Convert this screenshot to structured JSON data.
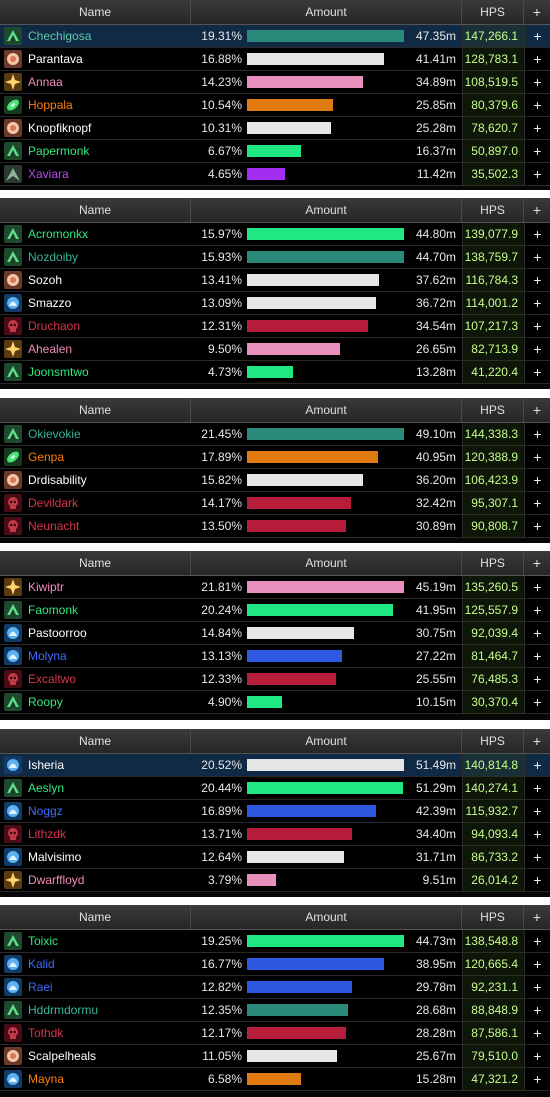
{
  "colors": {
    "monk": "#1fe882",
    "monk_teal": "#2a8a7a",
    "priest": "#e6e6e6",
    "paladin": "#e98fbd",
    "evoker": "#e07a10",
    "shaman": "#2f58e0",
    "druid_bar": "#a32df0",
    "dk": "#b51d3a",
    "hps_text": "#c6ff8c"
  },
  "panels": [
    {
      "header": {
        "name": "Name",
        "amount": "Amount",
        "hps": "HPS",
        "plus": "+"
      },
      "rows": [
        {
          "name": "Chechigosa",
          "name_color": "#5dc8a8",
          "icon": "monk-icon",
          "pct": "19.31%",
          "amount": "47.35m",
          "hps": "147,266.1",
          "plus": "+",
          "bar_fraction": 1.0,
          "bar_color": "#2a8a7a",
          "selected": true
        },
        {
          "name": "Parantava",
          "name_color": "#ffffff",
          "icon": "priest-icon",
          "pct": "16.88%",
          "amount": "41.41m",
          "hps": "128,783.1",
          "plus": "+",
          "bar_fraction": 0.874,
          "bar_color": "#e6e6e6"
        },
        {
          "name": "Annaa",
          "name_color": "#f38bb9",
          "icon": "paladin-icon",
          "pct": "14.23%",
          "amount": "34.89m",
          "hps": "108,519.5",
          "plus": "+",
          "bar_fraction": 0.737,
          "bar_color": "#e98fbd"
        },
        {
          "name": "Hoppala",
          "name_color": "#ff7d0a",
          "icon": "evoker-icon",
          "pct": "10.54%",
          "amount": "25.85m",
          "hps": "80,379.6",
          "plus": "+",
          "bar_fraction": 0.546,
          "bar_color": "#e07a10"
        },
        {
          "name": "Knopfiknopf",
          "name_color": "#ffffff",
          "icon": "priest-icon",
          "pct": "10.31%",
          "amount": "25.28m",
          "hps": "78,620.7",
          "plus": "+",
          "bar_fraction": 0.534,
          "bar_color": "#e6e6e6"
        },
        {
          "name": "Papermonk",
          "name_color": "#33e87e",
          "icon": "monk-icon",
          "pct": "6.67%",
          "amount": "16.37m",
          "hps": "50,897.0",
          "plus": "+",
          "bar_fraction": 0.346,
          "bar_color": "#1fe882"
        },
        {
          "name": "Xaviara",
          "name_color": "#b04fe8",
          "icon": "druid-icon",
          "pct": "4.65%",
          "amount": "11.42m",
          "hps": "35,502.3",
          "plus": "+",
          "bar_fraction": 0.241,
          "bar_color": "#a32df0"
        }
      ]
    },
    {
      "header": {
        "name": "Name",
        "amount": "Amount",
        "hps": "HPS",
        "plus": "+"
      },
      "rows": [
        {
          "name": "Acromonkx",
          "name_color": "#33e87e",
          "icon": "monk-icon",
          "pct": "15.97%",
          "amount": "44.80m",
          "hps": "139,077.9",
          "plus": "+",
          "bar_fraction": 1.0,
          "bar_color": "#1fe882"
        },
        {
          "name": "Nozdoiby",
          "name_color": "#3ab59a",
          "icon": "monk-icon",
          "pct": "15.93%",
          "amount": "44.70m",
          "hps": "138,759.7",
          "plus": "+",
          "bar_fraction": 0.998,
          "bar_color": "#2a8a7a"
        },
        {
          "name": "Sozoh",
          "name_color": "#ffffff",
          "icon": "priest-icon",
          "pct": "13.41%",
          "amount": "37.62m",
          "hps": "116,784.3",
          "plus": "+",
          "bar_fraction": 0.84,
          "bar_color": "#e6e6e6"
        },
        {
          "name": "Smazzo",
          "name_color": "#ffffff",
          "icon": "shaman-icon",
          "pct": "13.09%",
          "amount": "36.72m",
          "hps": "114,001.2",
          "plus": "+",
          "bar_fraction": 0.82,
          "bar_color": "#e6e6e6"
        },
        {
          "name": "Druchaon",
          "name_color": "#d7354e",
          "icon": "dk-icon",
          "pct": "12.31%",
          "amount": "34.54m",
          "hps": "107,217.3",
          "plus": "+",
          "bar_fraction": 0.771,
          "bar_color": "#b51d3a"
        },
        {
          "name": "Ahealen",
          "name_color": "#f38bb9",
          "icon": "paladin-icon",
          "pct": "9.50%",
          "amount": "26.65m",
          "hps": "82,713.9",
          "plus": "+",
          "bar_fraction": 0.595,
          "bar_color": "#e98fbd"
        },
        {
          "name": "Joonsmtwo",
          "name_color": "#33e87e",
          "icon": "monk-icon",
          "pct": "4.73%",
          "amount": "13.28m",
          "hps": "41,220.4",
          "plus": "+",
          "bar_fraction": 0.296,
          "bar_color": "#1fe882"
        }
      ]
    },
    {
      "header": {
        "name": "Name",
        "amount": "Amount",
        "hps": "HPS",
        "plus": "+"
      },
      "rows": [
        {
          "name": "Okievokie",
          "name_color": "#3ab59a",
          "icon": "monk-icon",
          "pct": "21.45%",
          "amount": "49.10m",
          "hps": "144,338.3",
          "plus": "+",
          "bar_fraction": 1.0,
          "bar_color": "#2a8a7a"
        },
        {
          "name": "Genpa",
          "name_color": "#ff7d0a",
          "icon": "evoker-icon",
          "pct": "17.89%",
          "amount": "40.95m",
          "hps": "120,388.9",
          "plus": "+",
          "bar_fraction": 0.834,
          "bar_color": "#e07a10"
        },
        {
          "name": "Drdisability",
          "name_color": "#ffffff",
          "icon": "priest-icon",
          "pct": "15.82%",
          "amount": "36.20m",
          "hps": "106,423.9",
          "plus": "+",
          "bar_fraction": 0.737,
          "bar_color": "#e6e6e6"
        },
        {
          "name": "Devildark",
          "name_color": "#d7354e",
          "icon": "dk-icon",
          "pct": "14.17%",
          "amount": "32.42m",
          "hps": "95,307.1",
          "plus": "+",
          "bar_fraction": 0.66,
          "bar_color": "#b51d3a"
        },
        {
          "name": "Neunacht",
          "name_color": "#d7354e",
          "icon": "dk-icon",
          "pct": "13.50%",
          "amount": "30.89m",
          "hps": "90,808.7",
          "plus": "+",
          "bar_fraction": 0.629,
          "bar_color": "#b51d3a"
        }
      ]
    },
    {
      "header": {
        "name": "Name",
        "amount": "Amount",
        "hps": "HPS",
        "plus": "+"
      },
      "rows": [
        {
          "name": "Kiwiptr",
          "name_color": "#f38bb9",
          "icon": "paladin-icon",
          "pct": "21.81%",
          "amount": "45.19m",
          "hps": "135,260.5",
          "plus": "+",
          "bar_fraction": 1.0,
          "bar_color": "#e98fbd"
        },
        {
          "name": "Faomonk",
          "name_color": "#33e87e",
          "icon": "monk-icon",
          "pct": "20.24%",
          "amount": "41.95m",
          "hps": "125,557.9",
          "plus": "+",
          "bar_fraction": 0.928,
          "bar_color": "#1fe882"
        },
        {
          "name": "Pastoorroo",
          "name_color": "#ffffff",
          "icon": "shaman-icon",
          "pct": "14.84%",
          "amount": "30.75m",
          "hps": "92,039.4",
          "plus": "+",
          "bar_fraction": 0.68,
          "bar_color": "#e6e6e6"
        },
        {
          "name": "Molyna",
          "name_color": "#3b6cff",
          "icon": "shaman-icon",
          "pct": "13.13%",
          "amount": "27.22m",
          "hps": "81,464.7",
          "plus": "+",
          "bar_fraction": 0.602,
          "bar_color": "#2f58e0"
        },
        {
          "name": "Excaltwo",
          "name_color": "#d7354e",
          "icon": "dk-icon",
          "pct": "12.33%",
          "amount": "25.55m",
          "hps": "76,485.3",
          "plus": "+",
          "bar_fraction": 0.565,
          "bar_color": "#b51d3a"
        },
        {
          "name": "Roopy",
          "name_color": "#33e87e",
          "icon": "monk-icon",
          "pct": "4.90%",
          "amount": "10.15m",
          "hps": "30,370.4",
          "plus": "+",
          "bar_fraction": 0.225,
          "bar_color": "#1fe882"
        }
      ]
    },
    {
      "header": {
        "name": "Name",
        "amount": "Amount",
        "hps": "HPS",
        "plus": "+"
      },
      "rows": [
        {
          "name": "Isheria",
          "name_color": "#ffffff",
          "icon": "shaman-icon",
          "pct": "20.52%",
          "amount": "51.49m",
          "hps": "140,814.8",
          "plus": "+",
          "bar_fraction": 1.0,
          "bar_color": "#e6e6e6",
          "selected": true
        },
        {
          "name": "Aeslyn",
          "name_color": "#33e87e",
          "icon": "monk-icon",
          "pct": "20.44%",
          "amount": "51.29m",
          "hps": "140,274.1",
          "plus": "+",
          "bar_fraction": 0.996,
          "bar_color": "#1fe882"
        },
        {
          "name": "Noggz",
          "name_color": "#3b6cff",
          "icon": "shaman-icon",
          "pct": "16.89%",
          "amount": "42.39m",
          "hps": "115,932.7",
          "plus": "+",
          "bar_fraction": 0.823,
          "bar_color": "#2f58e0"
        },
        {
          "name": "Lithzdk",
          "name_color": "#d7354e",
          "icon": "dk-icon",
          "pct": "13.71%",
          "amount": "34.40m",
          "hps": "94,093.4",
          "plus": "+",
          "bar_fraction": 0.668,
          "bar_color": "#b51d3a"
        },
        {
          "name": "Malvisimo",
          "name_color": "#ffffff",
          "icon": "shaman-icon",
          "pct": "12.64%",
          "amount": "31.71m",
          "hps": "86,733.2",
          "plus": "+",
          "bar_fraction": 0.616,
          "bar_color": "#e6e6e6"
        },
        {
          "name": "Dwarffloyd",
          "name_color": "#f38bb9",
          "icon": "paladin-icon",
          "pct": "3.79%",
          "amount": "9.51m",
          "hps": "26,014.2",
          "plus": "+",
          "bar_fraction": 0.185,
          "bar_color": "#e98fbd"
        }
      ]
    },
    {
      "header": {
        "name": "Name",
        "amount": "Amount",
        "hps": "HPS",
        "plus": "+"
      },
      "rows": [
        {
          "name": "Toixic",
          "name_color": "#33e87e",
          "icon": "monk-icon",
          "pct": "19.25%",
          "amount": "44.73m",
          "hps": "138,548.8",
          "plus": "+",
          "bar_fraction": 1.0,
          "bar_color": "#1fe882"
        },
        {
          "name": "Kalid",
          "name_color": "#3b6cff",
          "icon": "shaman-icon",
          "pct": "16.77%",
          "amount": "38.95m",
          "hps": "120,665.4",
          "plus": "+",
          "bar_fraction": 0.871,
          "bar_color": "#2f58e0"
        },
        {
          "name": "Raei",
          "name_color": "#3b6cff",
          "icon": "shaman-icon",
          "pct": "12.82%",
          "amount": "29.78m",
          "hps": "92,231.1",
          "plus": "+",
          "bar_fraction": 0.666,
          "bar_color": "#2f58e0"
        },
        {
          "name": "Hddrmdormu",
          "name_color": "#3ab59a",
          "icon": "monk-icon",
          "pct": "12.35%",
          "amount": "28.68m",
          "hps": "88,848.9",
          "plus": "+",
          "bar_fraction": 0.641,
          "bar_color": "#2a8a7a"
        },
        {
          "name": "Tothdk",
          "name_color": "#d7354e",
          "icon": "dk-icon",
          "pct": "12.17%",
          "amount": "28.28m",
          "hps": "87,586.1",
          "plus": "+",
          "bar_fraction": 0.632,
          "bar_color": "#b51d3a"
        },
        {
          "name": "Scalpelheals",
          "name_color": "#ffffff",
          "icon": "priest-icon",
          "pct": "11.05%",
          "amount": "25.67m",
          "hps": "79,510.0",
          "plus": "+",
          "bar_fraction": 0.574,
          "bar_color": "#e6e6e6"
        },
        {
          "name": "Mayna",
          "name_color": "#ff7d0a",
          "icon": "shaman-icon",
          "pct": "6.58%",
          "amount": "15.28m",
          "hps": "47,321.2",
          "plus": "+",
          "bar_fraction": 0.342,
          "bar_color": "#e07a10"
        }
      ]
    }
  ]
}
